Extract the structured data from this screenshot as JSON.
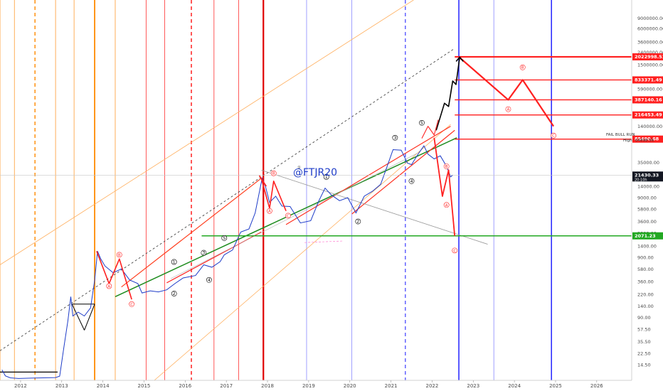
{
  "chart_data": {
    "type": "line",
    "watermark": "@FTJR20",
    "scale": "log",
    "x_range": [
      2011.55,
      2026.9
    ],
    "y_range": [
      8,
      18000000
    ],
    "y_ticks": [
      "9000000.00",
      "6000000.00",
      "3600000.00",
      "2400000.00",
      "1500000.00",
      "900000.00",
      "590000.00",
      "360000.00",
      "230000.00",
      "140000.00",
      "90000.00",
      "35000.00",
      "22000.00",
      "14000.00",
      "9000.00",
      "5800.00",
      "3600.00",
      "2300.00",
      "1400.00",
      "900.00",
      "580.00",
      "360.00",
      "220.00",
      "140.00",
      "90.00",
      "57.50",
      "35.50",
      "22.50",
      "14.50"
    ],
    "x_ticks": [
      "2012",
      "2013",
      "2014",
      "2015",
      "2016",
      "2017",
      "2018",
      "2019",
      "2020",
      "2021",
      "2022",
      "2023",
      "2024",
      "2025",
      "2026"
    ],
    "price_levels": [
      {
        "value": 2022998.51,
        "label": "2022998.51",
        "color": "#ff1f1f"
      },
      {
        "value": 833371.49,
        "label": "833371.49",
        "color": "#ff1f1f"
      },
      {
        "value": 387140.16,
        "label": "387140.16",
        "color": "#ff1f1f"
      },
      {
        "value": 216453.49,
        "label": "216453.49",
        "color": "#ff1f1f"
      },
      {
        "value": 85490.68,
        "label": "85490.68",
        "color": "#ff1f1f"
      },
      {
        "value": 2071.23,
        "label": "2071.23",
        "color": "#22a822"
      }
    ],
    "current_price": {
      "value": 21430.33,
      "label": "21430.33",
      "sub": "20:10h",
      "color": "#131722"
    },
    "price_series": [
      [
        2011.6,
        12
      ],
      [
        2011.68,
        9.5
      ],
      [
        2011.8,
        8.8
      ],
      [
        2012.0,
        8.6
      ],
      [
        2012.3,
        8.7
      ],
      [
        2012.6,
        8.8
      ],
      [
        2012.9,
        8.9
      ],
      [
        2013.0,
        9.4
      ],
      [
        2013.1,
        28
      ],
      [
        2013.2,
        80
      ],
      [
        2013.27,
        200
      ],
      [
        2013.32,
        95
      ],
      [
        2013.45,
        110
      ],
      [
        2013.6,
        95
      ],
      [
        2013.75,
        130
      ],
      [
        2013.85,
        380
      ],
      [
        2013.92,
        1150
      ],
      [
        2014.0,
        850
      ],
      [
        2014.1,
        650
      ],
      [
        2014.3,
        500
      ],
      [
        2014.5,
        580
      ],
      [
        2014.7,
        380
      ],
      [
        2014.9,
        330
      ],
      [
        2015.0,
        230
      ],
      [
        2015.2,
        250
      ],
      [
        2015.4,
        240
      ],
      [
        2015.6,
        260
      ],
      [
        2015.8,
        330
      ],
      [
        2016.0,
        410
      ],
      [
        2016.3,
        450
      ],
      [
        2016.5,
        680
      ],
      [
        2016.7,
        620
      ],
      [
        2016.9,
        770
      ],
      [
        2017.0,
        1000
      ],
      [
        2017.2,
        1200
      ],
      [
        2017.4,
        2400
      ],
      [
        2017.6,
        2700
      ],
      [
        2017.75,
        5000
      ],
      [
        2017.92,
        19000
      ],
      [
        2018.0,
        14000
      ],
      [
        2018.1,
        7500
      ],
      [
        2018.25,
        9500
      ],
      [
        2018.4,
        6500
      ],
      [
        2018.6,
        6400
      ],
      [
        2018.85,
        3400
      ],
      [
        2019.1,
        3700
      ],
      [
        2019.3,
        8000
      ],
      [
        2019.45,
        13000
      ],
      [
        2019.6,
        10000
      ],
      [
        2019.8,
        8000
      ],
      [
        2020.0,
        9000
      ],
      [
        2020.2,
        5000
      ],
      [
        2020.4,
        9500
      ],
      [
        2020.6,
        11500
      ],
      [
        2020.8,
        15000
      ],
      [
        2020.95,
        29000
      ],
      [
        2021.1,
        57000
      ],
      [
        2021.3,
        56000
      ],
      [
        2021.45,
        34000
      ],
      [
        2021.55,
        32000
      ],
      [
        2021.7,
        47000
      ],
      [
        2021.85,
        66000
      ],
      [
        2021.95,
        48000
      ],
      [
        2022.1,
        40000
      ],
      [
        2022.25,
        45000
      ],
      [
        2022.4,
        30000
      ],
      [
        2022.5,
        20000
      ],
      [
        2022.55,
        21430
      ]
    ],
    "wave_labels": [
      {
        "t": "①",
        "x": 2015.78,
        "y": 760
      },
      {
        "t": "②",
        "x": 2015.78,
        "y": 225
      },
      {
        "t": "③",
        "x": 2016.5,
        "y": 1080
      },
      {
        "t": "④",
        "x": 2016.63,
        "y": 380
      },
      {
        "t": "⑤",
        "x": 2017.0,
        "y": 1900
      },
      {
        "t": "A",
        "x": 2014.2,
        "y": 300
      },
      {
        "t": "B",
        "x": 2014.45,
        "y": 1000
      },
      {
        "t": "C",
        "x": 2014.75,
        "y": 150
      },
      {
        "t": "A",
        "x": 2018.1,
        "y": 5400
      },
      {
        "t": "B",
        "x": 2018.2,
        "y": 23000
      },
      {
        "t": "C",
        "x": 2018.55,
        "y": 4500
      },
      {
        "t": "①",
        "x": 2019.48,
        "y": 20000
      },
      {
        "t": "②",
        "x": 2020.25,
        "y": 3600
      },
      {
        "t": "③",
        "x": 2021.15,
        "y": 90000
      },
      {
        "t": "④",
        "x": 2021.55,
        "y": 17000
      },
      {
        "t": "⑤",
        "x": 2021.8,
        "y": 160000
      },
      {
        "t": "A",
        "x": 2022.4,
        "y": 6800
      },
      {
        "t": "B",
        "x": 2022.4,
        "y": 30000
      },
      {
        "t": "C",
        "x": 2022.6,
        "y": 1180
      },
      {
        "t": "A",
        "x": 2023.9,
        "y": 270000
      },
      {
        "t": "B",
        "x": 2024.25,
        "y": 1350000
      },
      {
        "t": "C",
        "x": 2025.0,
        "y": 98000
      }
    ]
  },
  "annotations": {
    "fail_bull_run": "FAIL BULL RUN",
    "high_label": "High",
    "high_value": "64898.56"
  }
}
